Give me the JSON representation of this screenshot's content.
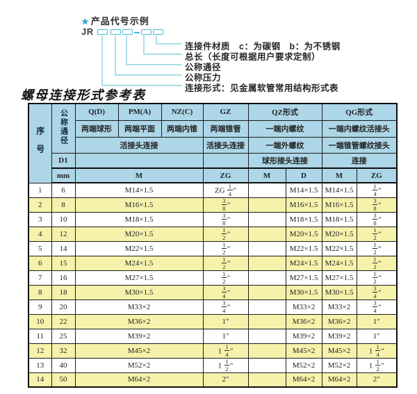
{
  "colors": {
    "header_bg": "#add7e8",
    "row_alt": "#f6f2ab",
    "border": "#1a1a1a",
    "line": "#8ccfe3",
    "box_border": "#45b8d8",
    "star": "#29a8dc",
    "text": "#222222"
  },
  "diagram": {
    "star": "★",
    "heading": "产品代号示例",
    "prefix": "JR",
    "labels": [
      "连接件材质　c：为碳钢　b：为不锈钢",
      "总长（长度可根据用户要求定制）",
      "公称通径",
      "公称压力",
      "连接形式：见金属软管常用结构形式表"
    ]
  },
  "table_title": "螺母连接形式参考表",
  "table": {
    "header": {
      "seq": "序号",
      "dn": "公称通径",
      "d1": "D1",
      "mm": "mm",
      "col_q": "Q(D)",
      "col_pm": "PM(A)",
      "col_nz": "NZ(C)",
      "col_gz": "GZ",
      "col_qz": "QZ形式",
      "col_qg": "QG形式",
      "q_desc": "两端球形",
      "pm_desc": "两端平面",
      "nz_desc": "两端内锥",
      "gz_desc": "两端锥管",
      "qz_desc1": "一端内螺纹",
      "qg_desc1": "一端内螺纹活接头",
      "union_conn": "活接头连接",
      "gz_conn": "活接头连接",
      "qz_desc2": "一端外螺纹",
      "qg_desc2": "一端锥管螺纹接头",
      "qz_conn": "球形接头连接",
      "qg_conn": "连接",
      "m": "M",
      "zg": "ZG",
      "d": "D"
    },
    "rows": [
      {
        "seq": "1",
        "dn": "6",
        "m": "M14×1.5",
        "gz": "ZG 1/4″",
        "qz_m": "",
        "qz_d": "M14×1.5",
        "qg_m": "M14×1.5",
        "qg_zg": "1/4″"
      },
      {
        "seq": "2",
        "dn": "8",
        "m": "M16×1.5",
        "gz": "3/8″",
        "qz_m": "",
        "qz_d": "M16×1.5",
        "qg_m": "M16×1.5",
        "qg_zg": "3/8″"
      },
      {
        "seq": "3",
        "dn": "10",
        "m": "M18×1.5",
        "gz": "3/8″",
        "qz_m": "",
        "qz_d": "M18×1.5",
        "qg_m": "M18×1.5",
        "qg_zg": "3/8″"
      },
      {
        "seq": "4",
        "dn": "12",
        "m": "M20×1.5",
        "gz": "1/2″",
        "qz_m": "",
        "qz_d": "M20×1.5",
        "qg_m": "M20×1.5",
        "qg_zg": "1/2″"
      },
      {
        "seq": "5",
        "dn": "14",
        "m": "M22×1.5",
        "gz": "1/2″",
        "qz_m": "",
        "qz_d": "M22×1.5",
        "qg_m": "M22×1.5",
        "qg_zg": "1/2″"
      },
      {
        "seq": "6",
        "dn": "15",
        "m": "M24×1.5",
        "gz": "1/2″",
        "qz_m": "",
        "qz_d": "M24×1.5",
        "qg_m": "M24×1.5",
        "qg_zg": "1/2″"
      },
      {
        "seq": "7",
        "dn": "16",
        "m": "M27×1.5",
        "gz": "1/2″",
        "qz_m": "",
        "qz_d": "M27×1.5",
        "qg_m": "M27×1.5",
        "qg_zg": "1/2″"
      },
      {
        "seq": "8",
        "dn": "18",
        "m": "M30×1.5",
        "gz": "3/4″",
        "qz_m": "",
        "qz_d": "M30×1.5",
        "qg_m": "M30×1.5",
        "qg_zg": "3/4″"
      },
      {
        "seq": "9",
        "dn": "20",
        "m": "M33×2",
        "gz": "3/4″",
        "qz_m": "",
        "qz_d": "M33×2",
        "qg_m": "M33×2",
        "qg_zg": "3/4″"
      },
      {
        "seq": "10",
        "dn": "22",
        "m": "M36×2",
        "gz": "1″",
        "qz_m": "",
        "qz_d": "M36×2",
        "qg_m": "M36×2",
        "qg_zg": "1″"
      },
      {
        "seq": "11",
        "dn": "25",
        "m": "M39×2",
        "gz": "1″",
        "qz_m": "",
        "qz_d": "M39×2",
        "qg_m": "M39×2",
        "qg_zg": "1″"
      },
      {
        "seq": "12",
        "dn": "32",
        "m": "M45×2",
        "gz": "1 1/4″",
        "qz_m": "",
        "qz_d": "M45×2",
        "qg_m": "M45×2",
        "qg_zg": "1 1/4″"
      },
      {
        "seq": "13",
        "dn": "40",
        "m": "M52×2",
        "gz": "1 1/2″",
        "qz_m": "",
        "qz_d": "M52×2",
        "qg_m": "M52×2",
        "qg_zg": "1 1/2″"
      },
      {
        "seq": "14",
        "dn": "50",
        "m": "M64×2",
        "gz": "2″",
        "qz_m": "",
        "qz_d": "M64×2",
        "qg_m": "M64×2",
        "qg_zg": "2″"
      }
    ]
  }
}
